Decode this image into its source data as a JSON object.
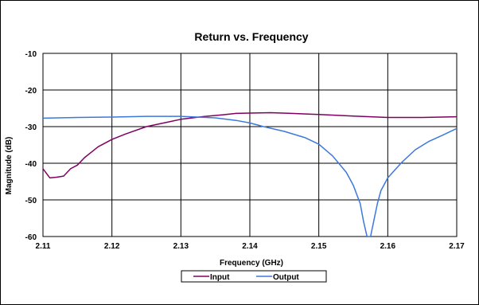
{
  "chart_data": {
    "type": "line",
    "title": "Return vs. Frequency",
    "xlabel": "Frequency (GHz)",
    "ylabel": "Magnitude (dB)",
    "xlim": [
      2.11,
      2.17
    ],
    "ylim": [
      -60,
      -10
    ],
    "x_ticks": [
      "2.11",
      "2.12",
      "2.13",
      "2.14",
      "2.15",
      "2.16",
      "2.17"
    ],
    "y_ticks": [
      "-10",
      "-20",
      "-30",
      "-40",
      "-50",
      "-60"
    ],
    "grid": true,
    "legend_position": "bottom",
    "series": [
      {
        "name": "Input",
        "color": "#800060",
        "x": [
          2.11,
          2.111,
          2.112,
          2.113,
          2.114,
          2.115,
          2.116,
          2.117,
          2.118,
          2.119,
          2.12,
          2.122,
          2.125,
          2.128,
          2.13,
          2.133,
          2.136,
          2.138,
          2.14,
          2.143,
          2.146,
          2.15,
          2.155,
          2.16,
          2.165,
          2.17
        ],
        "y": [
          -41.5,
          -44.0,
          -43.8,
          -43.5,
          -41.5,
          -40.5,
          -38.5,
          -37.0,
          -35.5,
          -34.5,
          -33.5,
          -32.0,
          -30.0,
          -28.8,
          -28.0,
          -27.3,
          -26.8,
          -26.4,
          -26.3,
          -26.2,
          -26.4,
          -26.7,
          -27.1,
          -27.5,
          -27.5,
          -27.3
        ]
      },
      {
        "name": "Output",
        "color": "#3c78dc",
        "x": [
          2.11,
          2.115,
          2.12,
          2.125,
          2.13,
          2.135,
          2.138,
          2.14,
          2.142,
          2.145,
          2.148,
          2.15,
          2.152,
          2.154,
          2.155,
          2.156,
          2.1565,
          2.157,
          2.1575,
          2.158,
          2.1585,
          2.159,
          2.16,
          2.162,
          2.164,
          2.166,
          2.168,
          2.17
        ],
        "y": [
          -27.7,
          -27.5,
          -27.4,
          -27.2,
          -27.2,
          -27.6,
          -28.3,
          -29.0,
          -30.0,
          -31.3,
          -33.0,
          -34.8,
          -38.0,
          -42.5,
          -46.0,
          -51.0,
          -56.0,
          -60.0,
          -60.0,
          -55.5,
          -51.0,
          -47.5,
          -44.0,
          -39.8,
          -36.3,
          -34.0,
          -32.3,
          -30.5
        ]
      }
    ]
  }
}
